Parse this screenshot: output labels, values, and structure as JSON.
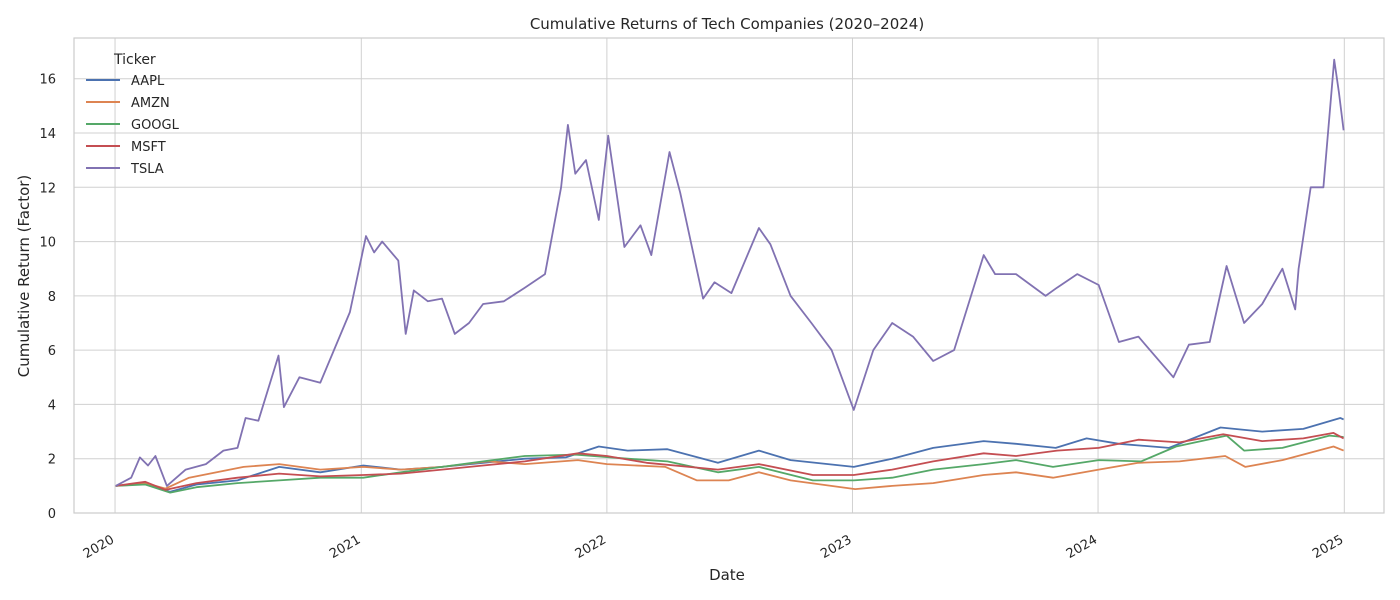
{
  "chart_data": {
    "type": "line",
    "title": "Cumulative Returns of Tech Companies (2020–2024)",
    "xlabel": "Date",
    "ylabel": "Cumulative Return (Factor)",
    "xlim": [
      "2019-11-01",
      "2025-03-01"
    ],
    "ylim": [
      0,
      17.5
    ],
    "x_ticks": [
      "2020",
      "2021",
      "2022",
      "2023",
      "2024",
      "2025"
    ],
    "y_ticks": [
      0,
      2,
      4,
      6,
      8,
      10,
      12,
      14,
      16
    ],
    "grid": true,
    "legend": {
      "title": "Ticker",
      "placement": "top-left"
    },
    "series": [
      {
        "name": "AAPL",
        "color": "#4c72b0",
        "points": [
          [
            "2020-01-02",
            1.0
          ],
          [
            "2020-02-15",
            1.1
          ],
          [
            "2020-03-23",
            0.78
          ],
          [
            "2020-05-01",
            1.05
          ],
          [
            "2020-07-01",
            1.2
          ],
          [
            "2020-09-01",
            1.7
          ],
          [
            "2020-11-01",
            1.5
          ],
          [
            "2021-01-04",
            1.75
          ],
          [
            "2021-03-01",
            1.6
          ],
          [
            "2021-05-01",
            1.7
          ],
          [
            "2021-07-01",
            1.85
          ],
          [
            "2021-09-01",
            2.0
          ],
          [
            "2021-11-01",
            2.05
          ],
          [
            "2021-12-20",
            2.45
          ],
          [
            "2022-02-01",
            2.3
          ],
          [
            "2022-04-01",
            2.35
          ],
          [
            "2022-06-15",
            1.85
          ],
          [
            "2022-08-15",
            2.3
          ],
          [
            "2022-10-01",
            1.95
          ],
          [
            "2023-01-03",
            1.7
          ],
          [
            "2023-03-01",
            2.0
          ],
          [
            "2023-05-01",
            2.4
          ],
          [
            "2023-07-15",
            2.65
          ],
          [
            "2023-09-01",
            2.55
          ],
          [
            "2023-10-30",
            2.4
          ],
          [
            "2023-12-15",
            2.75
          ],
          [
            "2024-02-01",
            2.55
          ],
          [
            "2024-04-15",
            2.4
          ],
          [
            "2024-07-01",
            3.15
          ],
          [
            "2024-09-01",
            3.0
          ],
          [
            "2024-11-01",
            3.1
          ],
          [
            "2024-12-26",
            3.5
          ],
          [
            "2024-12-31",
            3.45
          ]
        ]
      },
      {
        "name": "AMZN",
        "color": "#dd8452",
        "points": [
          [
            "2020-01-02",
            1.0
          ],
          [
            "2020-02-15",
            1.1
          ],
          [
            "2020-03-16",
            0.9
          ],
          [
            "2020-04-20",
            1.3
          ],
          [
            "2020-07-10",
            1.7
          ],
          [
            "2020-09-01",
            1.8
          ],
          [
            "2020-11-01",
            1.6
          ],
          [
            "2021-01-04",
            1.7
          ],
          [
            "2021-03-01",
            1.6
          ],
          [
            "2021-05-01",
            1.7
          ],
          [
            "2021-07-08",
            1.9
          ],
          [
            "2021-09-01",
            1.8
          ],
          [
            "2021-11-19",
            1.95
          ],
          [
            "2022-01-01",
            1.8
          ],
          [
            "2022-03-29",
            1.7
          ],
          [
            "2022-05-15",
            1.2
          ],
          [
            "2022-07-01",
            1.2
          ],
          [
            "2022-08-15",
            1.5
          ],
          [
            "2022-10-01",
            1.2
          ],
          [
            "2023-01-05",
            0.88
          ],
          [
            "2023-03-01",
            1.0
          ],
          [
            "2023-05-01",
            1.1
          ],
          [
            "2023-07-15",
            1.4
          ],
          [
            "2023-09-01",
            1.5
          ],
          [
            "2023-10-26",
            1.3
          ],
          [
            "2024-01-02",
            1.6
          ],
          [
            "2024-03-01",
            1.85
          ],
          [
            "2024-05-01",
            1.9
          ],
          [
            "2024-07-08",
            2.1
          ],
          [
            "2024-08-07",
            1.7
          ],
          [
            "2024-10-01",
            1.95
          ],
          [
            "2024-12-16",
            2.45
          ],
          [
            "2024-12-31",
            2.3
          ]
        ]
      },
      {
        "name": "GOOGL",
        "color": "#55a868",
        "points": [
          [
            "2020-01-02",
            1.0
          ],
          [
            "2020-02-15",
            1.05
          ],
          [
            "2020-03-23",
            0.75
          ],
          [
            "2020-05-01",
            0.95
          ],
          [
            "2020-07-01",
            1.1
          ],
          [
            "2020-09-01",
            1.2
          ],
          [
            "2020-11-01",
            1.3
          ],
          [
            "2021-01-04",
            1.3
          ],
          [
            "2021-03-01",
            1.5
          ],
          [
            "2021-05-01",
            1.7
          ],
          [
            "2021-07-01",
            1.9
          ],
          [
            "2021-09-01",
            2.1
          ],
          [
            "2021-11-15",
            2.15
          ],
          [
            "2022-02-01",
            2.0
          ],
          [
            "2022-04-01",
            1.9
          ],
          [
            "2022-06-15",
            1.5
          ],
          [
            "2022-08-15",
            1.7
          ],
          [
            "2022-11-03",
            1.2
          ],
          [
            "2023-01-03",
            1.2
          ],
          [
            "2023-03-01",
            1.3
          ],
          [
            "2023-05-01",
            1.6
          ],
          [
            "2023-07-15",
            1.8
          ],
          [
            "2023-09-01",
            1.95
          ],
          [
            "2023-10-26",
            1.7
          ],
          [
            "2024-01-02",
            1.95
          ],
          [
            "2024-03-05",
            1.9
          ],
          [
            "2024-04-26",
            2.45
          ],
          [
            "2024-07-10",
            2.85
          ],
          [
            "2024-08-05",
            2.3
          ],
          [
            "2024-10-01",
            2.4
          ],
          [
            "2024-12-10",
            2.85
          ],
          [
            "2024-12-31",
            2.8
          ]
        ]
      },
      {
        "name": "MSFT",
        "color": "#c44e52",
        "points": [
          [
            "2020-01-02",
            1.0
          ],
          [
            "2020-02-15",
            1.15
          ],
          [
            "2020-03-16",
            0.85
          ],
          [
            "2020-05-01",
            1.1
          ],
          [
            "2020-07-01",
            1.3
          ],
          [
            "2020-09-01",
            1.45
          ],
          [
            "2020-11-01",
            1.35
          ],
          [
            "2021-01-04",
            1.4
          ],
          [
            "2021-03-01",
            1.45
          ],
          [
            "2021-05-01",
            1.6
          ],
          [
            "2021-07-01",
            1.75
          ],
          [
            "2021-09-01",
            1.9
          ],
          [
            "2021-11-19",
            2.2
          ],
          [
            "2022-01-01",
            2.1
          ],
          [
            "2022-03-01",
            1.85
          ],
          [
            "2022-06-15",
            1.6
          ],
          [
            "2022-08-15",
            1.8
          ],
          [
            "2022-11-03",
            1.4
          ],
          [
            "2023-01-03",
            1.4
          ],
          [
            "2023-03-01",
            1.6
          ],
          [
            "2023-05-01",
            1.9
          ],
          [
            "2023-07-15",
            2.2
          ],
          [
            "2023-09-01",
            2.1
          ],
          [
            "2023-11-01",
            2.3
          ],
          [
            "2024-01-02",
            2.4
          ],
          [
            "2024-03-01",
            2.7
          ],
          [
            "2024-05-01",
            2.6
          ],
          [
            "2024-07-05",
            2.9
          ],
          [
            "2024-09-01",
            2.65
          ],
          [
            "2024-11-01",
            2.75
          ],
          [
            "2024-12-16",
            2.95
          ],
          [
            "2024-12-31",
            2.75
          ]
        ]
      },
      {
        "name": "TSLA",
        "color": "#8172b2",
        "points": [
          [
            "2020-01-02",
            1.0
          ],
          [
            "2020-01-25",
            1.3
          ],
          [
            "2020-02-07",
            2.05
          ],
          [
            "2020-02-19",
            1.75
          ],
          [
            "2020-03-01",
            2.1
          ],
          [
            "2020-03-18",
            1.0
          ],
          [
            "2020-04-15",
            1.6
          ],
          [
            "2020-05-15",
            1.8
          ],
          [
            "2020-06-10",
            2.3
          ],
          [
            "2020-07-01",
            2.4
          ],
          [
            "2020-07-13",
            3.5
          ],
          [
            "2020-08-01",
            3.4
          ],
          [
            "2020-08-31",
            5.8
          ],
          [
            "2020-09-08",
            3.9
          ],
          [
            "2020-10-01",
            5.0
          ],
          [
            "2020-11-01",
            4.8
          ],
          [
            "2020-12-15",
            7.4
          ],
          [
            "2021-01-08",
            10.2
          ],
          [
            "2021-01-20",
            9.6
          ],
          [
            "2021-02-01",
            10.0
          ],
          [
            "2021-02-25",
            9.3
          ],
          [
            "2021-03-08",
            6.6
          ],
          [
            "2021-03-20",
            8.2
          ],
          [
            "2021-04-10",
            7.8
          ],
          [
            "2021-05-01",
            7.9
          ],
          [
            "2021-05-20",
            6.6
          ],
          [
            "2021-06-10",
            7.0
          ],
          [
            "2021-07-01",
            7.7
          ],
          [
            "2021-08-01",
            7.8
          ],
          [
            "2021-09-01",
            8.3
          ],
          [
            "2021-10-01",
            8.8
          ],
          [
            "2021-10-25",
            12.0
          ],
          [
            "2021-11-04",
            14.3
          ],
          [
            "2021-11-15",
            12.5
          ],
          [
            "2021-12-01",
            13.0
          ],
          [
            "2021-12-20",
            10.8
          ],
          [
            "2022-01-03",
            13.9
          ],
          [
            "2022-01-27",
            9.8
          ],
          [
            "2022-02-20",
            10.6
          ],
          [
            "2022-03-08",
            9.5
          ],
          [
            "2022-04-04",
            13.3
          ],
          [
            "2022-04-20",
            11.8
          ],
          [
            "2022-05-24",
            7.9
          ],
          [
            "2022-06-10",
            8.5
          ],
          [
            "2022-07-05",
            8.1
          ],
          [
            "2022-08-15",
            10.5
          ],
          [
            "2022-09-01",
            9.9
          ],
          [
            "2022-10-01",
            8.0
          ],
          [
            "2022-11-01",
            7.0
          ],
          [
            "2022-12-01",
            6.0
          ],
          [
            "2023-01-03",
            3.8
          ],
          [
            "2023-02-01",
            6.0
          ],
          [
            "2023-03-01",
            7.0
          ],
          [
            "2023-04-01",
            6.5
          ],
          [
            "2023-05-01",
            5.6
          ],
          [
            "2023-06-01",
            6.0
          ],
          [
            "2023-07-15",
            9.5
          ],
          [
            "2023-08-01",
            8.8
          ],
          [
            "2023-09-01",
            8.8
          ],
          [
            "2023-10-15",
            8.0
          ],
          [
            "2023-11-01",
            8.3
          ],
          [
            "2023-12-01",
            8.8
          ],
          [
            "2024-01-02",
            8.4
          ],
          [
            "2024-02-01",
            6.3
          ],
          [
            "2024-03-01",
            6.5
          ],
          [
            "2024-04-22",
            5.0
          ],
          [
            "2024-05-15",
            6.2
          ],
          [
            "2024-06-15",
            6.3
          ],
          [
            "2024-07-10",
            9.1
          ],
          [
            "2024-08-05",
            7.0
          ],
          [
            "2024-09-01",
            7.7
          ],
          [
            "2024-10-01",
            9.0
          ],
          [
            "2024-10-20",
            7.5
          ],
          [
            "2024-10-25",
            9.0
          ],
          [
            "2024-11-12",
            12.0
          ],
          [
            "2024-12-01",
            12.0
          ],
          [
            "2024-12-17",
            16.7
          ],
          [
            "2024-12-24",
            15.5
          ],
          [
            "2024-12-31",
            14.1
          ]
        ]
      }
    ]
  }
}
